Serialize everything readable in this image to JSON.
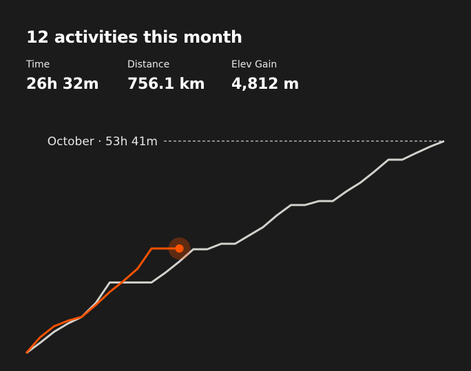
{
  "header": {
    "title": "12 activities this month"
  },
  "stats": [
    {
      "label": "Time",
      "value": "26h 32m"
    },
    {
      "label": "Distance",
      "value": "756.1 km"
    },
    {
      "label": "Elev Gain",
      "value": "4,812 m"
    }
  ],
  "chart_data": {
    "type": "line",
    "reference_label": "October · 53h 41m",
    "x": [
      1,
      2,
      3,
      4,
      5,
      6,
      7,
      8,
      9,
      10,
      11,
      12,
      13,
      14,
      15,
      16,
      17,
      18,
      19,
      20,
      21,
      22,
      23,
      24,
      25,
      26,
      27,
      28,
      29,
      30,
      31
    ],
    "xlim": [
      1,
      31
    ],
    "ylim": [
      0,
      53.7
    ],
    "series": [
      {
        "color": "#d2d1cc",
        "values": [
          0,
          2.6,
          5.4,
          7.5,
          9.2,
          12.7,
          17.9,
          17.9,
          17.9,
          17.9,
          20.4,
          23.2,
          26.3,
          26.3,
          27.7,
          27.7,
          29.8,
          31.9,
          34.9,
          37.5,
          37.5,
          38.5,
          38.5,
          41.0,
          43.2,
          46.0,
          49.0,
          49.0,
          50.7,
          52.3,
          53.7
        ]
      },
      {
        "color": "#fc5200",
        "values": [
          0,
          4.0,
          6.8,
          8.2,
          9.2,
          12.2,
          15.5,
          18.3,
          21.4,
          26.5,
          26.5,
          26.5,
          null,
          null,
          null,
          null,
          null,
          null,
          null,
          null,
          null,
          null,
          null,
          null,
          null,
          null,
          null,
          null,
          null,
          null,
          null
        ]
      }
    ]
  }
}
